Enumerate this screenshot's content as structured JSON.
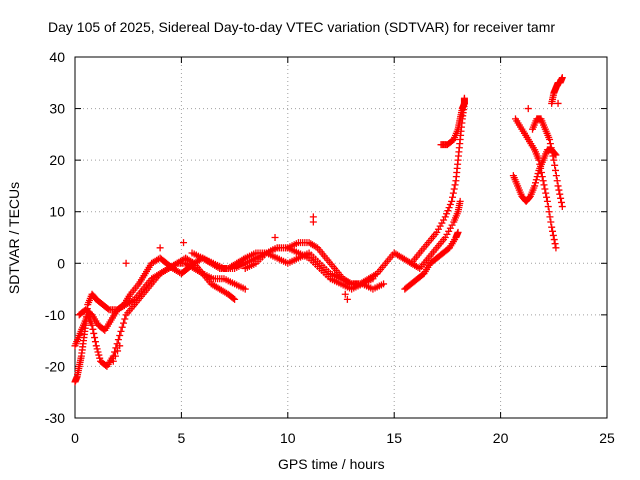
{
  "chart_data": {
    "type": "scatter",
    "title": "Day 105 of 2025, Sidereal Day-to-day VTEC variation (SDTVAR) for receiver tamr",
    "xlabel": "GPS time / hours",
    "ylabel": "SDTVAR / TECUs",
    "xlim": [
      0,
      25
    ],
    "ylim": [
      -30,
      40
    ],
    "xticks": [
      "0",
      "5",
      "10",
      "15",
      "20",
      "25"
    ],
    "yticks": [
      "-30",
      "-20",
      "-10",
      "0",
      "10",
      "20",
      "30",
      "40"
    ],
    "grid": true,
    "marker": "+",
    "color": "#ff0000",
    "series": [
      {
        "x": [
          0.0,
          0.1,
          0.2,
          0.3,
          0.4,
          0.5,
          0.6,
          0.8,
          1.0,
          1.3,
          1.6,
          2.0,
          2.3,
          2.6,
          3.0,
          3.3,
          3.6,
          4.0,
          4.3,
          4.6,
          5.0,
          5.3,
          5.6,
          6.0,
          6.4,
          6.8,
          7.2,
          7.6,
          8.0,
          8.5,
          9.0,
          9.5,
          10.0,
          10.5,
          11.0,
          11.4,
          11.8,
          12.2,
          12.6,
          13.0,
          13.4,
          13.8,
          14.2,
          14.6,
          15.0,
          15.4,
          15.8,
          16.2,
          16.6,
          17.0,
          17.4,
          17.8,
          18.0,
          18.1
        ],
        "y": [
          -23,
          -22,
          -20,
          -18,
          -15,
          -12,
          -8,
          -6,
          -7,
          -8,
          -9,
          -9,
          -8,
          -6,
          -4,
          -2,
          0,
          1,
          0,
          -1,
          -2,
          -1,
          0,
          1,
          0,
          -1,
          -1,
          0,
          1,
          2,
          2,
          3,
          3,
          4,
          4,
          3,
          1,
          -1,
          -3,
          -4,
          -4,
          -3,
          -2,
          0,
          2,
          1,
          0,
          -1,
          1,
          3,
          5,
          8,
          10,
          12
        ]
      },
      {
        "x": [
          0.0,
          0.2,
          0.4,
          0.6,
          0.8,
          1.0,
          1.2,
          1.5,
          1.8,
          2.1,
          2.4,
          2.8,
          3.2,
          3.6,
          4.0,
          4.4,
          4.8,
          5.2,
          5.6,
          6.0,
          6.4,
          6.8,
          7.2,
          7.5
        ],
        "y": [
          -16,
          -14,
          -12,
          -10,
          -12,
          -16,
          -19,
          -20,
          -18,
          -14,
          -10,
          -8,
          -6,
          -4,
          -2,
          -1,
          0,
          1,
          0,
          -2,
          -4,
          -5,
          -6,
          -7
        ]
      },
      {
        "x": [
          0.2,
          0.5,
          0.8,
          1.1,
          1.4,
          1.7,
          2.0,
          2.4,
          2.8,
          3.2,
          3.6,
          4.0,
          4.4,
          4.8,
          5.2,
          5.6,
          6.0,
          6.5,
          7.0,
          7.5,
          8.0
        ],
        "y": [
          -10,
          -9,
          -10,
          -12,
          -13,
          -11,
          -9,
          -8,
          -7,
          -5,
          -3,
          -2,
          -1,
          0,
          0,
          -1,
          -2,
          -3,
          -3,
          -4,
          -5
        ]
      },
      {
        "x": [
          5.5,
          6.0,
          6.5,
          7.0,
          7.5,
          8.0,
          8.5,
          9.0,
          9.5,
          10.0,
          10.5,
          11.0,
          11.5,
          12.0,
          12.5,
          13.0,
          13.5,
          14.0,
          14.5
        ],
        "y": [
          2,
          1,
          0,
          -1,
          -1,
          0,
          1,
          2,
          1,
          0,
          1,
          2,
          0,
          -2,
          -3,
          -4,
          -4,
          -5,
          -4
        ]
      },
      {
        "x": [
          8.0,
          8.5,
          9.0,
          9.5,
          10.0,
          10.5,
          11.0,
          11.5,
          12.0,
          12.5,
          13.0,
          13.5,
          14.0
        ],
        "y": [
          -1,
          0,
          2,
          3,
          3,
          2,
          1,
          -1,
          -3,
          -4,
          -5,
          -4,
          -3
        ]
      },
      {
        "x": [
          15.5,
          15.8,
          16.1,
          16.4,
          16.7,
          17.0,
          17.3,
          17.6,
          17.9,
          18.0
        ],
        "y": [
          -5,
          -4,
          -3,
          -2,
          0,
          1,
          2,
          3,
          5,
          6
        ]
      },
      {
        "x": [
          15.8,
          16.2,
          16.6,
          17.0,
          17.4,
          17.7,
          17.9,
          18.0,
          18.1,
          18.2,
          18.3
        ],
        "y": [
          0,
          2,
          4,
          6,
          9,
          12,
          16,
          20,
          24,
          28,
          31
        ]
      },
      {
        "x": [
          17.2,
          17.5,
          17.8,
          18.0,
          18.1,
          18.2,
          18.3,
          18.3
        ],
        "y": [
          23,
          23,
          24,
          26,
          28,
          30,
          31,
          32
        ]
      },
      {
        "x": [
          20.6,
          20.8,
          21.0,
          21.2,
          21.4,
          21.6,
          21.8,
          22.0,
          22.2,
          22.4,
          22.6
        ],
        "y": [
          17,
          15,
          13,
          12,
          13,
          15,
          18,
          20,
          22,
          22,
          21
        ]
      },
      {
        "x": [
          20.7,
          21.0,
          21.3,
          21.6,
          21.8,
          22.0,
          22.2,
          22.4,
          22.6
        ],
        "y": [
          28,
          26,
          24,
          22,
          20,
          16,
          12,
          7,
          3
        ]
      },
      {
        "x": [
          21.5,
          21.7,
          21.9,
          22.1,
          22.3,
          22.5,
          22.7,
          22.9
        ],
        "y": [
          26,
          28,
          28,
          26,
          24,
          20,
          15,
          11
        ]
      },
      {
        "x": [
          22.4,
          22.5,
          22.6,
          22.7,
          22.8,
          22.9
        ],
        "y": [
          31,
          33,
          34,
          35,
          35,
          36
        ]
      },
      {
        "x": [
          1.8,
          1.9,
          2.0,
          2.1,
          2.4,
          4.0,
          5.1,
          9.4,
          11.2,
          11.2,
          12.7,
          12.8,
          21.3,
          22.7
        ],
        "y": [
          -19,
          -18,
          -17,
          -16,
          0,
          3,
          4,
          5,
          9,
          8,
          -6,
          -7,
          30,
          31
        ]
      }
    ]
  }
}
